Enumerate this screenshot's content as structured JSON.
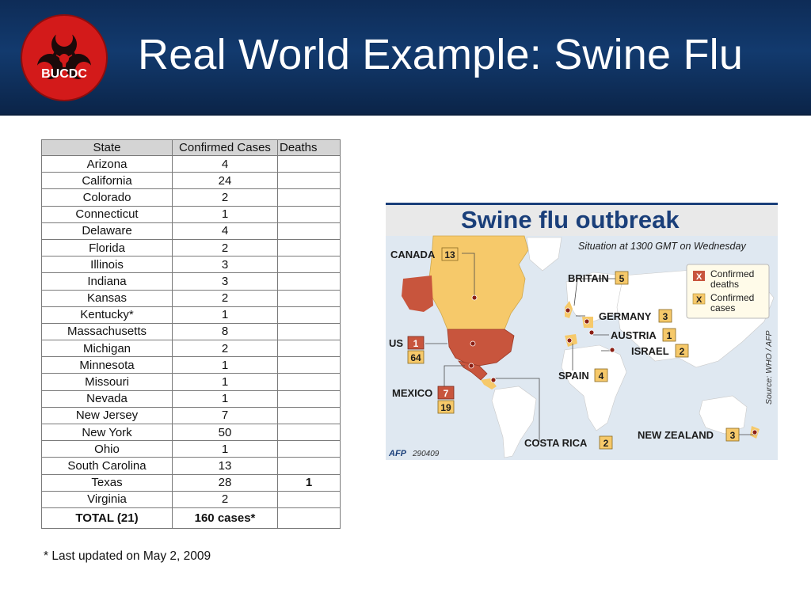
{
  "slide": {
    "title": "Real World Example: Swine Flu",
    "logo_text": "BUCDC"
  },
  "table": {
    "headers": [
      "State",
      "Confirmed Cases",
      "Deaths"
    ],
    "rows": [
      {
        "state": "Arizona",
        "cases": "4",
        "deaths": ""
      },
      {
        "state": "California",
        "cases": "24",
        "deaths": ""
      },
      {
        "state": "Colorado",
        "cases": "2",
        "deaths": ""
      },
      {
        "state": "Connecticut",
        "cases": "1",
        "deaths": ""
      },
      {
        "state": "Delaware",
        "cases": "4",
        "deaths": ""
      },
      {
        "state": "Florida",
        "cases": "2",
        "deaths": ""
      },
      {
        "state": "Illinois",
        "cases": "3",
        "deaths": ""
      },
      {
        "state": "Indiana",
        "cases": "3",
        "deaths": ""
      },
      {
        "state": "Kansas",
        "cases": "2",
        "deaths": ""
      },
      {
        "state": "Kentucky*",
        "cases": "1",
        "deaths": ""
      },
      {
        "state": "Massachusetts",
        "cases": "8",
        "deaths": ""
      },
      {
        "state": "Michigan",
        "cases": "2",
        "deaths": ""
      },
      {
        "state": "Minnesota",
        "cases": "1",
        "deaths": ""
      },
      {
        "state": "Missouri",
        "cases": "1",
        "deaths": ""
      },
      {
        "state": "Nevada",
        "cases": "1",
        "deaths": ""
      },
      {
        "state": "New Jersey",
        "cases": "7",
        "deaths": ""
      },
      {
        "state": "New York",
        "cases": "50",
        "deaths": ""
      },
      {
        "state": "Ohio",
        "cases": "1",
        "deaths": ""
      },
      {
        "state": "South Carolina",
        "cases": "13",
        "deaths": ""
      },
      {
        "state": "Texas",
        "cases": "28",
        "deaths": "1"
      },
      {
        "state": "Virginia",
        "cases": "2",
        "deaths": ""
      }
    ],
    "total": {
      "state": "TOTAL (21)",
      "cases": "160 cases*",
      "deaths": ""
    }
  },
  "footnote": "* Last updated on May 2, 2009",
  "map": {
    "title": "Swine flu outbreak",
    "subtitle": "Situation at 1300 GMT on Wednesday",
    "legend": {
      "deaths_marker": "X",
      "deaths_label_1": "Confirmed",
      "deaths_label_2": "deaths",
      "cases_marker": "X",
      "cases_label_1": "Confirmed",
      "cases_label_2": "cases"
    },
    "countries": {
      "canada": {
        "name": "CANADA",
        "cases": "13"
      },
      "britain": {
        "name": "BRITAIN",
        "cases": "5"
      },
      "germany": {
        "name": "GERMANY",
        "cases": "3"
      },
      "austria": {
        "name": "AUSTRIA",
        "cases": "1"
      },
      "israel": {
        "name": "ISRAEL",
        "cases": "2"
      },
      "us": {
        "name": "US",
        "deaths": "1",
        "cases": "64"
      },
      "spain": {
        "name": "SPAIN",
        "cases": "4"
      },
      "mexico": {
        "name": "MEXICO",
        "deaths": "7",
        "cases": "19"
      },
      "costa_rica": {
        "name": "COSTA RICA",
        "cases": "2"
      },
      "new_zealand": {
        "name": "NEW ZEALAND",
        "cases": "3"
      }
    },
    "source": "Source: WHO / AFP",
    "credit_brand": "AFP",
    "credit_code": "290409",
    "colors": {
      "deaths": "#c8553d",
      "cases": "#f6c96a",
      "ocean": "#dfe8f1",
      "land": "#ffffff",
      "title_bar": "#e9e9e9",
      "title_text": "#1a3f7a"
    }
  },
  "colors": {
    "header_bg": "#123a6e",
    "logo_red": "#d31a1a",
    "table_header_bg": "#d4d4d4"
  }
}
